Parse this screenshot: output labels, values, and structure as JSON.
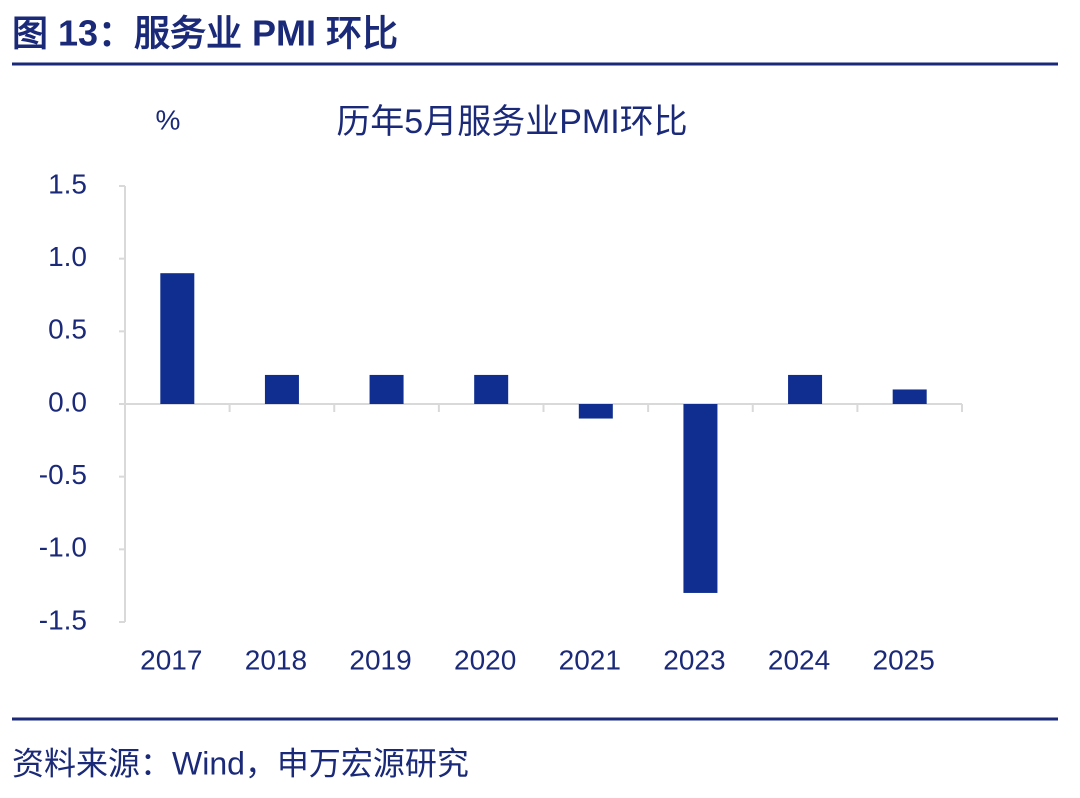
{
  "header": {
    "title": "图 13：服务业 PMI 环比"
  },
  "chart_data": {
    "type": "bar",
    "title": "历年5月服务业PMI环比",
    "y_unit": "%",
    "categories": [
      "2017",
      "2018",
      "2019",
      "2020",
      "2021",
      "2023",
      "2024",
      "2025"
    ],
    "values": [
      0.9,
      0.2,
      0.2,
      0.2,
      -0.1,
      -1.3,
      0.2,
      0.1
    ],
    "color": "#0f2e8f",
    "ylim": [
      -1.5,
      1.5
    ],
    "yticks": [
      -1.5,
      {
        "value": -1,
        "label": "-1.0"
      },
      -0.5,
      {
        "value": 0,
        "label": "0.0"
      },
      0.5,
      {
        "value": 1,
        "label": "1.0"
      },
      1.5
    ],
    "grid": false
  },
  "footer": {
    "source": "资料来源：Wind，申万宏源研究"
  }
}
